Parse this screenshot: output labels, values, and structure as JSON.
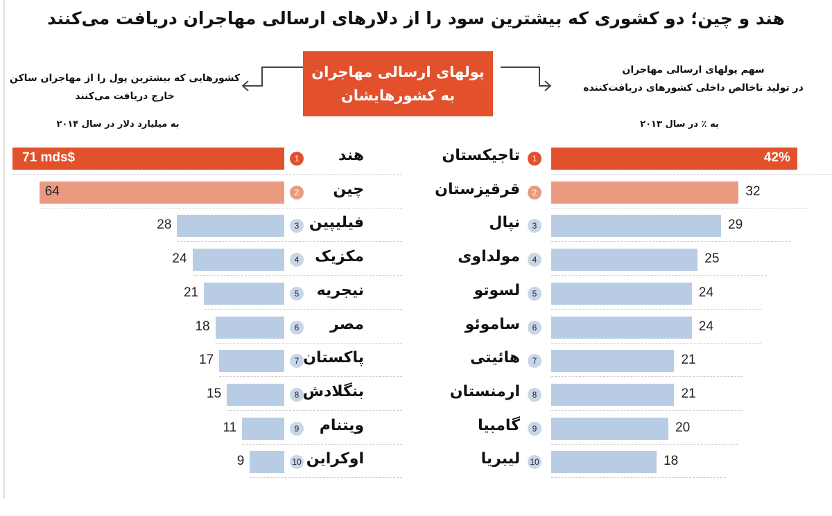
{
  "title": "هند و چین؛ دو کشوری که بیشترین سود را از دلارهای ارسالی مهاجران دریافت می‌کنند",
  "center_box": {
    "line1": "پولهای ارسالی مهاجران",
    "line2": "به کشورهایشان"
  },
  "colors": {
    "rank1": "#e2502c",
    "rank2": "#eb9a82",
    "other": "#b8cde3",
    "other_circle": "#c8d6e6"
  },
  "chart_data": [
    {
      "type": "bar",
      "orientation": "horizontal",
      "title_line1": "کشورهایی که بیشترین پول را از مهاجران ساکن",
      "title_line2": "خارج دریافت می‌کنند",
      "unit_label": "به میلیارد دلار در سال ۲۰۱۴",
      "categories": [
        "هند",
        "چین",
        "فیلیپین",
        "مکزیک",
        "نیجریه",
        "مصر",
        "پاکستان",
        "بنگلادش",
        "ویتنام",
        "اوکراین"
      ],
      "values": [
        71,
        64,
        28,
        24,
        21,
        18,
        17,
        15,
        11,
        9
      ],
      "value_labels": [
        "71 mds$",
        "64",
        "28",
        "24",
        "21",
        "18",
        "17",
        "15",
        "11",
        "9"
      ],
      "ranks": [
        "1",
        "2",
        "3",
        "4",
        "5",
        "6",
        "7",
        "8",
        "9",
        "10"
      ]
    },
    {
      "type": "bar",
      "orientation": "horizontal",
      "title_line1": "سهم پولهای ارسالی مهاجران",
      "title_line2": "در تولید ناخالص داخلی کشورهای دریافت‌کننده",
      "unit_label": "به ٪ در سال ۲۰۱۳",
      "categories": [
        "تاجیکستان",
        "قرقیزستان",
        "نپال",
        "مولداوی",
        "لسوتو",
        "ساموئو",
        "هائیتی",
        "ارمنستان",
        "گامبیا",
        "لیبریا"
      ],
      "values": [
        42,
        32,
        29,
        25,
        24,
        24,
        21,
        21,
        20,
        18
      ],
      "value_labels": [
        "42%",
        "32",
        "29",
        "25",
        "24",
        "24",
        "21",
        "21",
        "20",
        "18"
      ],
      "ranks": [
        "1",
        "2",
        "3",
        "4",
        "5",
        "6",
        "7",
        "8",
        "9",
        "10"
      ]
    }
  ]
}
